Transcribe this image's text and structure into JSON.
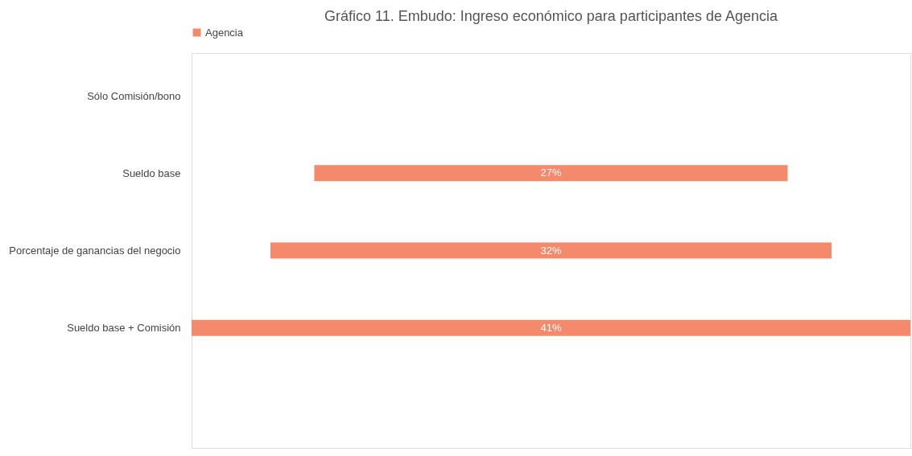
{
  "chart_data": {
    "type": "other",
    "title": "Gráfico 11. Embudo: Ingreso económico para participantes de Agencia",
    "categories": [
      "Sólo Comisión/bono",
      "Sueldo base",
      "Porcentaje de ganancias del negocio",
      "Sueldo base + Comisión"
    ],
    "series": [
      {
        "name": "Agencia",
        "color": "#f4896b",
        "values": [
          null,
          27,
          32,
          41
        ],
        "value_labels": [
          null,
          "27%",
          "32%",
          "41%"
        ]
      }
    ],
    "legend": "top"
  }
}
